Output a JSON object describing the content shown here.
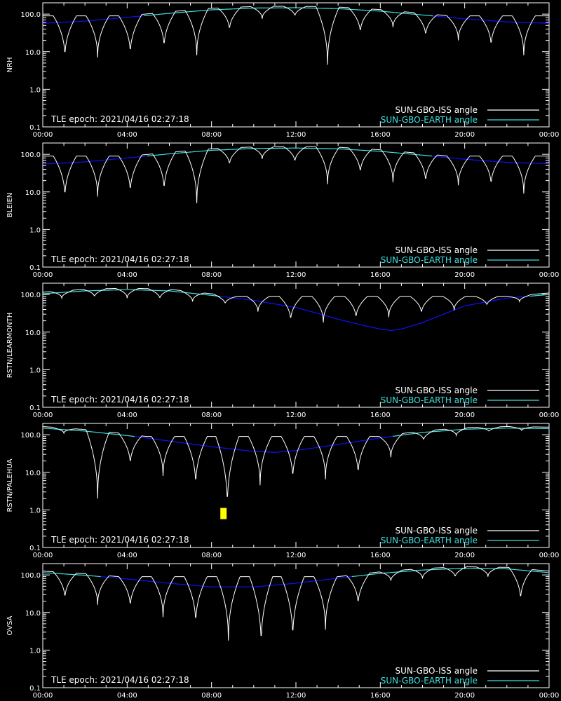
{
  "chart_data": [
    {
      "type": "line",
      "ylabel": "NRH",
      "yscale": "log",
      "ylim": [
        0.1,
        200
      ],
      "yticks": [
        "0.1",
        "1.0",
        "10.0",
        "100.0"
      ],
      "xlim": [
        0,
        24
      ],
      "xticks": [
        "00:00",
        "04:00",
        "08:00",
        "12:00",
        "16:00",
        "20:00",
        "00:00"
      ],
      "annotation": "TLE epoch: 2021/04/16 02:27:18",
      "legend_position": "bottom-right",
      "colors": {
        "iss": "#ffffff",
        "earth_day": "#40e0e0",
        "earth_night": "#1010ff"
      },
      "series": [
        {
          "name": "SUN-GBO-ISS angle",
          "color": "#ffffff",
          "troughs": [
            [
              1.05,
              6.5
            ],
            [
              2.6,
              7.0
            ],
            [
              4.15,
              8.0
            ],
            [
              5.75,
              12.0
            ],
            [
              7.3,
              8.0
            ],
            [
              8.85,
              35.0
            ],
            [
              10.4,
              75.0
            ],
            [
              11.95,
              85.0
            ],
            [
              13.5,
              4.5
            ],
            [
              15.05,
              30.0
            ],
            [
              16.6,
              45.0
            ],
            [
              18.15,
              25.0
            ],
            [
              19.7,
              20.0
            ],
            [
              21.25,
              13.0
            ],
            [
              22.8,
              8.0
            ]
          ]
        },
        {
          "name": "SUN-GBO-EARTH angle",
          "color": "#40e0e0",
          "x": [
            0,
            2,
            4,
            6,
            8,
            10,
            12,
            14,
            16,
            18,
            20,
            22,
            24
          ],
          "y": [
            57,
            65,
            82,
            105,
            130,
            145,
            148,
            140,
            120,
            95,
            75,
            62,
            57
          ]
        }
      ]
    },
    {
      "type": "line",
      "ylabel": "BLEIEN",
      "yscale": "log",
      "ylim": [
        0.1,
        200
      ],
      "yticks": [
        "0.1",
        "1.0",
        "10.0",
        "100.0"
      ],
      "xlim": [
        0,
        24
      ],
      "xticks": [
        "00:00",
        "04:00",
        "08:00",
        "12:00",
        "16:00",
        "20:00",
        "00:00"
      ],
      "annotation": "TLE epoch: 2021/04/16 02:27:18",
      "legend_position": "bottom-right",
      "colors": {
        "iss": "#ffffff",
        "earth_day": "#40e0e0",
        "earth_night": "#1010ff"
      },
      "series": [
        {
          "name": "SUN-GBO-ISS angle",
          "color": "#ffffff",
          "troughs": [
            [
              1.05,
              6.5
            ],
            [
              2.6,
              7.5
            ],
            [
              4.15,
              9.0
            ],
            [
              5.75,
              10.0
            ],
            [
              7.3,
              5.0
            ],
            [
              8.85,
              50.0
            ],
            [
              10.4,
              75.0
            ],
            [
              11.95,
              60.0
            ],
            [
              13.5,
              16.0
            ],
            [
              15.05,
              30.0
            ],
            [
              16.6,
              18.0
            ],
            [
              18.15,
              17.0
            ],
            [
              19.7,
              15.0
            ],
            [
              21.25,
              14.0
            ],
            [
              22.8,
              9.0
            ]
          ]
        },
        {
          "name": "SUN-GBO-EARTH angle",
          "color": "#40e0e0",
          "x": [
            0,
            2,
            4,
            6,
            8,
            10,
            12,
            14,
            16,
            18,
            20,
            22,
            24
          ],
          "y": [
            55,
            63,
            80,
            103,
            128,
            143,
            147,
            140,
            120,
            95,
            74,
            61,
            56
          ]
        }
      ]
    },
    {
      "type": "line",
      "ylabel": "RSTN/LEARMONTH",
      "yscale": "log",
      "ylim": [
        0.1,
        200
      ],
      "yticks": [
        "0.1",
        "1.0",
        "10.0",
        "100.0"
      ],
      "xlim": [
        0,
        24
      ],
      "xticks": [
        "00:00",
        "04:00",
        "08:00",
        "12:00",
        "16:00",
        "20:00",
        "00:00"
      ],
      "annotation": "TLE epoch: 2021/04/16 02:27:18",
      "legend_position": "bottom-right",
      "colors": {
        "iss": "#ffffff",
        "earth_day": "#40e0e0",
        "earth_night": "#1010ff"
      },
      "series": [
        {
          "name": "SUN-GBO-ISS angle",
          "color": "#ffffff",
          "troughs": [
            [
              0.9,
              80.0
            ],
            [
              2.45,
              85.0
            ],
            [
              4.0,
              80.0
            ],
            [
              5.55,
              75.0
            ],
            [
              7.1,
              65.0
            ],
            [
              8.65,
              55.0
            ],
            [
              10.2,
              35.0
            ],
            [
              11.75,
              19.0
            ],
            [
              13.3,
              18.0
            ],
            [
              14.85,
              22.0
            ],
            [
              16.4,
              25.0
            ],
            [
              17.95,
              30.0
            ],
            [
              19.5,
              38.0
            ],
            [
              21.05,
              50.0
            ],
            [
              22.6,
              65.0
            ]
          ]
        },
        {
          "name": "SUN-GBO-EARTH angle",
          "color": "#40e0e0",
          "x": [
            0,
            2,
            4,
            6,
            8,
            10,
            12,
            13,
            14,
            15,
            16,
            16.5,
            17,
            18,
            19,
            20,
            22,
            24
          ],
          "y": [
            105,
            125,
            135,
            125,
            95,
            70,
            45,
            32,
            22,
            16,
            12,
            11,
            12,
            18,
            30,
            50,
            80,
            100
          ]
        }
      ]
    },
    {
      "type": "line",
      "ylabel": "RSTN/PALEHUA",
      "yscale": "log",
      "ylim": [
        0.1,
        200
      ],
      "yticks": [
        "0.1",
        "1.0",
        "10.0",
        "100.0"
      ],
      "xlim": [
        0,
        24
      ],
      "xticks": [
        "00:00",
        "04:00",
        "08:00",
        "12:00",
        "16:00",
        "20:00",
        "00:00"
      ],
      "annotation": "TLE epoch: 2021/04/16 02:27:18",
      "legend_position": "bottom-right",
      "colors": {
        "iss": "#ffffff",
        "earth_day": "#40e0e0",
        "earth_night": "#1010ff",
        "marker": "#ffff00"
      },
      "marker": {
        "x": 8.55,
        "y": 0.8
      },
      "series": [
        {
          "name": "SUN-GBO-ISS angle",
          "color": "#ffffff",
          "troughs": [
            [
              1.0,
              110.0
            ],
            [
              2.6,
              2.0
            ],
            [
              4.15,
              15.0
            ],
            [
              5.7,
              8.0
            ],
            [
              7.25,
              4.0
            ],
            [
              8.75,
              1.1
            ],
            [
              10.3,
              4.5
            ],
            [
              11.85,
              6.0
            ],
            [
              13.4,
              6.5
            ],
            [
              14.95,
              8.0
            ],
            [
              16.5,
              25.0
            ],
            [
              18.05,
              70.0
            ],
            [
              19.6,
              95.0
            ],
            [
              21.15,
              120.0
            ],
            [
              22.7,
              130.0
            ]
          ]
        },
        {
          "name": "SUN-GBO-EARTH angle",
          "color": "#40e0e0",
          "x": [
            0,
            2,
            4,
            6,
            8,
            10,
            11,
            12,
            14,
            16,
            18,
            20,
            22,
            24
          ],
          "y": [
            150,
            125,
            95,
            68,
            48,
            36,
            34,
            38,
            55,
            82,
            115,
            140,
            150,
            145
          ]
        }
      ]
    },
    {
      "type": "line",
      "ylabel": "OVSA",
      "yscale": "log",
      "ylim": [
        0.1,
        200
      ],
      "yticks": [
        "0.1",
        "1.0",
        "10.0",
        "100.0"
      ],
      "xlim": [
        0,
        24
      ],
      "xticks": [
        "00:00",
        "04:00",
        "08:00",
        "12:00",
        "16:00",
        "20:00",
        "00:00"
      ],
      "annotation": "TLE epoch: 2021/04/16 02:27:18",
      "legend_position": "bottom-right",
      "colors": {
        "iss": "#ffffff",
        "earth_day": "#40e0e0",
        "earth_night": "#1010ff"
      },
      "series": [
        {
          "name": "SUN-GBO-ISS angle",
          "color": "#ffffff",
          "troughs": [
            [
              1.05,
              22.0
            ],
            [
              2.6,
              16.0
            ],
            [
              4.15,
              13.0
            ],
            [
              5.7,
              7.5
            ],
            [
              7.25,
              4.5
            ],
            [
              8.8,
              1.8
            ],
            [
              10.35,
              1.2
            ],
            [
              11.85,
              1.8
            ],
            [
              13.4,
              3.5
            ],
            [
              14.95,
              15.0
            ],
            [
              16.5,
              70.0
            ],
            [
              18.0,
              80.0
            ],
            [
              19.55,
              85.0
            ],
            [
              21.1,
              90.0
            ],
            [
              22.65,
              20.0
            ]
          ]
        },
        {
          "name": "SUN-GBO-EARTH angle",
          "color": "#40e0e0",
          "x": [
            0,
            2,
            4,
            6,
            8,
            10,
            12,
            14,
            16,
            18,
            20,
            22,
            24
          ],
          "y": [
            115,
            98,
            78,
            60,
            48,
            48,
            60,
            82,
            110,
            135,
            150,
            145,
            115
          ]
        }
      ]
    }
  ]
}
